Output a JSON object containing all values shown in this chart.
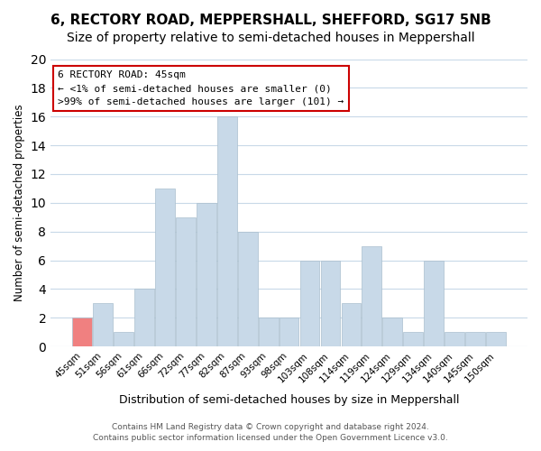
{
  "title": "6, RECTORY ROAD, MEPPERSHALL, SHEFFORD, SG17 5NB",
  "subtitle": "Size of property relative to semi-detached houses in Meppershall",
  "xlabel": "Distribution of semi-detached houses by size in Meppershall",
  "ylabel": "Number of semi-detached properties",
  "bins": [
    "45sqm",
    "51sqm",
    "56sqm",
    "61sqm",
    "66sqm",
    "72sqm",
    "77sqm",
    "82sqm",
    "87sqm",
    "93sqm",
    "98sqm",
    "103sqm",
    "108sqm",
    "114sqm",
    "119sqm",
    "124sqm",
    "129sqm",
    "134sqm",
    "140sqm",
    "145sqm",
    "150sqm"
  ],
  "values": [
    2,
    3,
    1,
    4,
    11,
    9,
    10,
    16,
    8,
    2,
    2,
    6,
    6,
    3,
    7,
    2,
    1,
    6,
    1,
    1,
    1
  ],
  "bar_color": "#c8d9e8",
  "highlight_bar_index": 0,
  "highlight_bar_color": "#f08080",
  "ylim": [
    0,
    20
  ],
  "yticks": [
    0,
    2,
    4,
    6,
    8,
    10,
    12,
    14,
    16,
    18,
    20
  ],
  "annotation_title": "6 RECTORY ROAD: 45sqm",
  "annotation_line1": "← <1% of semi-detached houses are smaller (0)",
  "annotation_line2": ">99% of semi-detached houses are larger (101) →",
  "annotation_box_color": "#ffffff",
  "annotation_border_color": "#cc0000",
  "footer_line1": "Contains HM Land Registry data © Crown copyright and database right 2024.",
  "footer_line2": "Contains public sector information licensed under the Open Government Licence v3.0.",
  "background_color": "#ffffff",
  "grid_color": "#c8d9e8",
  "title_fontsize": 11,
  "subtitle_fontsize": 10
}
